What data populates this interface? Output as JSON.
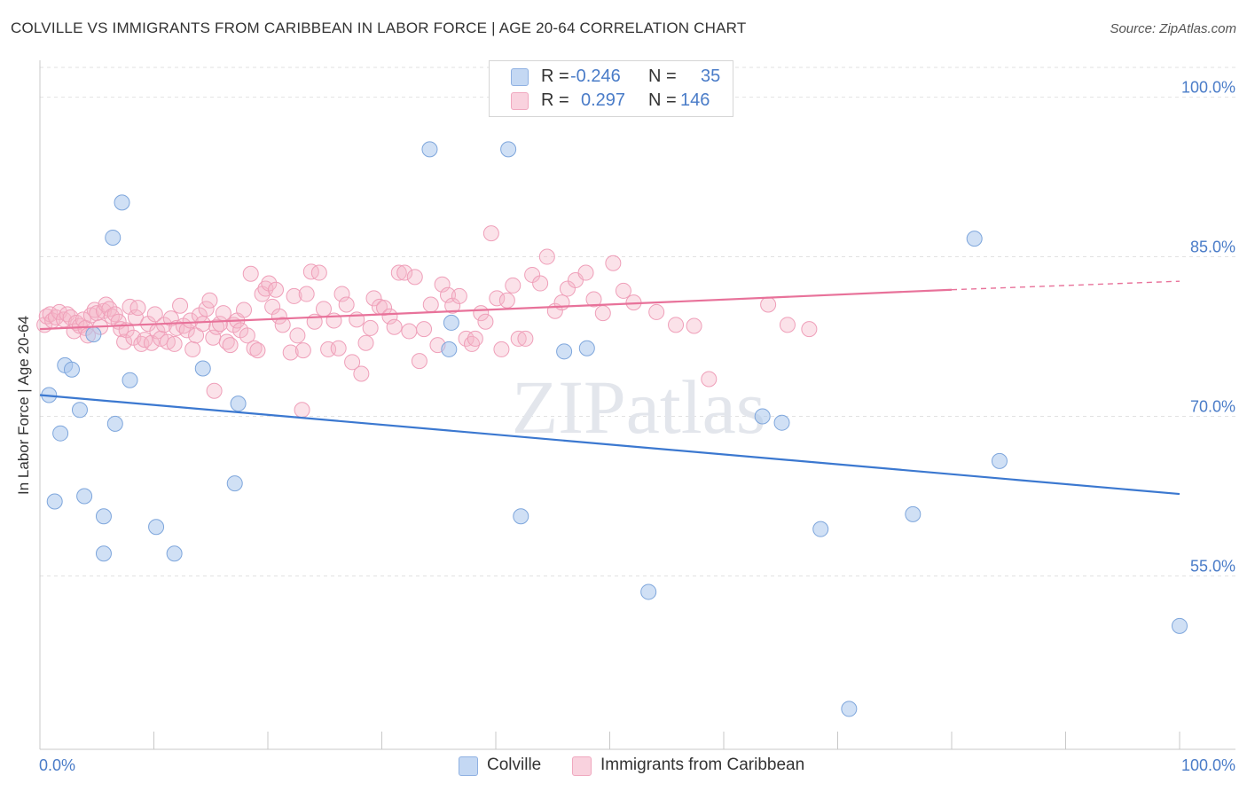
{
  "title": "COLVILLE VS IMMIGRANTS FROM CARIBBEAN IN LABOR FORCE | AGE 20-64 CORRELATION CHART",
  "source": "Source: ZipAtlas.com",
  "watermark": "ZIPatlas",
  "legend": {
    "r_label": "R =",
    "n_label": "N =",
    "rows": [
      {
        "series": "Colville",
        "r": "-0.246",
        "n": "35",
        "color": "#a9c6ec"
      },
      {
        "series": "Immigrants from Caribbean",
        "r": "0.297",
        "n": "146",
        "color": "#f4b6c8"
      }
    ]
  },
  "chart_data": {
    "type": "scatter",
    "title": "COLVILLE VS IMMIGRANTS FROM CARIBBEAN IN LABOR FORCE | AGE 20-64 CORRELATION CHART",
    "xlabel": "",
    "ylabel": "In Labor Force | Age 20-64",
    "xlim": [
      0,
      100
    ],
    "ylim": [
      38.7,
      102.8
    ],
    "x_tick_labels": [
      "0.0%",
      "100.0%"
    ],
    "y_ticks": [
      55,
      70,
      85,
      100
    ],
    "y_tick_labels": [
      "55.0%",
      "70.0%",
      "85.0%",
      "100.0%"
    ],
    "colors": {
      "Colville": "#3b78d0",
      "Immigrants from Caribbean": "#e8729a"
    },
    "series": [
      {
        "name": "Colville",
        "trend": {
          "x0": 0,
          "y0": 72.0,
          "x1": 100,
          "y1": 62.7
        },
        "points": [
          [
            0.8,
            72.0
          ],
          [
            1.3,
            62.0
          ],
          [
            1.8,
            68.4
          ],
          [
            2.2,
            74.8
          ],
          [
            2.8,
            74.4
          ],
          [
            3.5,
            70.6
          ],
          [
            3.9,
            62.5
          ],
          [
            4.7,
            77.7
          ],
          [
            5.6,
            60.6
          ],
          [
            5.6,
            57.1
          ],
          [
            6.4,
            86.8
          ],
          [
            6.6,
            69.3
          ],
          [
            7.2,
            90.1
          ],
          [
            7.9,
            73.4
          ],
          [
            10.2,
            59.6
          ],
          [
            11.8,
            57.1
          ],
          [
            14.3,
            74.5
          ],
          [
            17.1,
            63.7
          ],
          [
            17.4,
            71.2
          ],
          [
            34.2,
            95.1
          ],
          [
            35.9,
            76.3
          ],
          [
            36.1,
            78.8
          ],
          [
            41.1,
            95.1
          ],
          [
            42.2,
            60.6
          ],
          [
            46.0,
            76.1
          ],
          [
            48.0,
            76.4
          ],
          [
            53.4,
            53.5
          ],
          [
            63.4,
            70.0
          ],
          [
            65.1,
            69.4
          ],
          [
            68.5,
            59.4
          ],
          [
            71.0,
            42.5
          ],
          [
            76.6,
            60.8
          ],
          [
            82.0,
            86.7
          ],
          [
            84.2,
            65.8
          ],
          [
            100.0,
            50.3
          ]
        ]
      },
      {
        "name": "Immigrants from Caribbean",
        "trend": {
          "x0": 0,
          "y0": 78.2,
          "x1": 80,
          "y1": 81.9,
          "dash_to_x": 100,
          "dash_to_y": 82.7
        },
        "points": [
          [
            0.4,
            78.6
          ],
          [
            0.6,
            79.4
          ],
          [
            0.9,
            79.6
          ],
          [
            1.1,
            79.0
          ],
          [
            1.4,
            79.3
          ],
          [
            1.7,
            79.8
          ],
          [
            2.1,
            79.1
          ],
          [
            2.4,
            79.6
          ],
          [
            2.7,
            79.3
          ],
          [
            3.0,
            78.0
          ],
          [
            3.2,
            78.8
          ],
          [
            3.5,
            78.5
          ],
          [
            3.8,
            79.1
          ],
          [
            4.0,
            78.3
          ],
          [
            4.2,
            77.6
          ],
          [
            4.5,
            79.5
          ],
          [
            4.8,
            80.0
          ],
          [
            5.0,
            79.7
          ],
          [
            5.3,
            78.4
          ],
          [
            5.6,
            79.9
          ],
          [
            5.8,
            80.5
          ],
          [
            6.1,
            80.1
          ],
          [
            6.3,
            79.4
          ],
          [
            6.6,
            79.6
          ],
          [
            6.9,
            78.9
          ],
          [
            7.1,
            78.2
          ],
          [
            7.4,
            77.0
          ],
          [
            7.6,
            78.1
          ],
          [
            7.9,
            80.3
          ],
          [
            8.2,
            77.4
          ],
          [
            8.4,
            79.3
          ],
          [
            8.6,
            80.2
          ],
          [
            8.9,
            76.8
          ],
          [
            9.2,
            77.2
          ],
          [
            9.5,
            78.7
          ],
          [
            9.8,
            76.9
          ],
          [
            10.1,
            79.6
          ],
          [
            10.3,
            78.0
          ],
          [
            10.6,
            77.3
          ],
          [
            10.9,
            78.6
          ],
          [
            11.2,
            77.0
          ],
          [
            11.5,
            79.2
          ],
          [
            11.8,
            76.8
          ],
          [
            12.0,
            78.3
          ],
          [
            12.3,
            80.4
          ],
          [
            12.6,
            78.5
          ],
          [
            12.9,
            78.1
          ],
          [
            13.2,
            79.0
          ],
          [
            13.4,
            76.3
          ],
          [
            13.7,
            77.6
          ],
          [
            14.0,
            79.5
          ],
          [
            14.3,
            78.7
          ],
          [
            14.6,
            80.1
          ],
          [
            14.9,
            80.9
          ],
          [
            15.2,
            77.4
          ],
          [
            15.5,
            78.4
          ],
          [
            15.8,
            78.7
          ],
          [
            16.1,
            79.7
          ],
          [
            16.4,
            77.0
          ],
          [
            16.7,
            76.7
          ],
          [
            17.0,
            78.6
          ],
          [
            17.3,
            79.0
          ],
          [
            17.6,
            78.1
          ],
          [
            17.9,
            80.0
          ],
          [
            18.2,
            77.6
          ],
          [
            18.5,
            83.4
          ],
          [
            18.8,
            76.4
          ],
          [
            19.1,
            76.2
          ],
          [
            19.5,
            81.5
          ],
          [
            19.8,
            82.0
          ],
          [
            20.1,
            82.5
          ],
          [
            20.4,
            80.3
          ],
          [
            20.7,
            81.9
          ],
          [
            21.0,
            79.4
          ],
          [
            21.3,
            78.6
          ],
          [
            22.0,
            76.0
          ],
          [
            22.3,
            81.3
          ],
          [
            22.6,
            77.6
          ],
          [
            23.1,
            76.2
          ],
          [
            23.4,
            81.5
          ],
          [
            23.8,
            83.6
          ],
          [
            24.1,
            78.9
          ],
          [
            24.5,
            83.5
          ],
          [
            24.9,
            80.1
          ],
          [
            25.3,
            76.3
          ],
          [
            25.8,
            79.0
          ],
          [
            26.2,
            76.4
          ],
          [
            26.5,
            81.5
          ],
          [
            26.9,
            80.5
          ],
          [
            27.4,
            75.1
          ],
          [
            27.8,
            79.1
          ],
          [
            28.2,
            74.0
          ],
          [
            28.6,
            76.9
          ],
          [
            29.0,
            78.3
          ],
          [
            29.3,
            81.1
          ],
          [
            29.8,
            80.3
          ],
          [
            30.2,
            80.2
          ],
          [
            30.7,
            79.4
          ],
          [
            31.1,
            78.4
          ],
          [
            31.5,
            83.5
          ],
          [
            32.0,
            83.5
          ],
          [
            32.4,
            78.0
          ],
          [
            32.9,
            83.1
          ],
          [
            33.3,
            75.2
          ],
          [
            33.7,
            78.2
          ],
          [
            34.3,
            80.5
          ],
          [
            34.9,
            76.7
          ],
          [
            35.3,
            82.4
          ],
          [
            35.8,
            81.4
          ],
          [
            36.2,
            80.4
          ],
          [
            36.8,
            81.3
          ],
          [
            37.4,
            77.3
          ],
          [
            37.9,
            76.8
          ],
          [
            38.2,
            77.3
          ],
          [
            38.7,
            79.7
          ],
          [
            39.1,
            78.9
          ],
          [
            39.6,
            87.2
          ],
          [
            40.1,
            81.1
          ],
          [
            40.5,
            76.3
          ],
          [
            41.0,
            80.9
          ],
          [
            41.5,
            82.3
          ],
          [
            42.0,
            77.3
          ],
          [
            42.6,
            77.3
          ],
          [
            43.2,
            83.3
          ],
          [
            43.9,
            82.5
          ],
          [
            44.5,
            85.0
          ],
          [
            45.2,
            79.9
          ],
          [
            45.8,
            80.7
          ],
          [
            46.3,
            82.0
          ],
          [
            47.0,
            82.8
          ],
          [
            47.9,
            83.5
          ],
          [
            48.6,
            81.0
          ],
          [
            49.4,
            79.7
          ],
          [
            50.3,
            84.4
          ],
          [
            51.2,
            81.8
          ],
          [
            52.1,
            80.7
          ],
          [
            54.1,
            79.8
          ],
          [
            55.8,
            78.6
          ],
          [
            57.4,
            78.5
          ],
          [
            63.9,
            80.5
          ],
          [
            65.6,
            78.6
          ],
          [
            67.5,
            78.2
          ],
          [
            58.7,
            73.5
          ],
          [
            15.3,
            72.4
          ],
          [
            23.0,
            70.6
          ]
        ]
      }
    ]
  },
  "bottom_legend": [
    {
      "label": "Colville",
      "color": "#a9c6ec"
    },
    {
      "label": "Immigrants from Caribbean",
      "color": "#f4b6c8"
    }
  ]
}
